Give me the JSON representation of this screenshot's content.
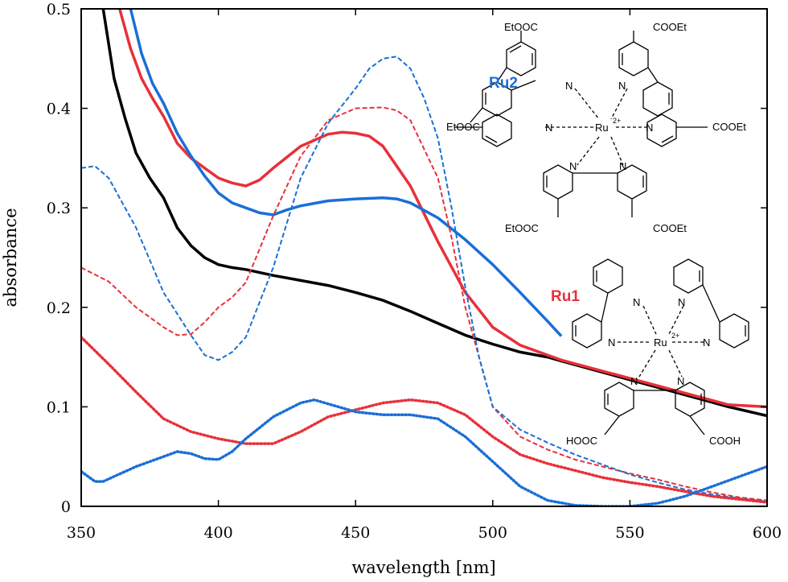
{
  "chart_data": {
    "type": "line",
    "xlabel": "wavelength [nm]",
    "ylabel": "absorbance",
    "xlim": [
      350,
      600
    ],
    "ylim": [
      0,
      0.5
    ],
    "xticks": [
      "350",
      "400",
      "450",
      "500",
      "550",
      "600"
    ],
    "yticks": [
      "0",
      "0.1",
      "0.2",
      "0.3",
      "0.4",
      "0.5"
    ],
    "grid": false,
    "series": [
      {
        "style": "solid",
        "color": "#000000",
        "x": [
          358,
          362,
          366,
          370,
          375,
          380,
          385,
          390,
          395,
          400,
          405,
          410,
          420,
          430,
          440,
          450,
          460,
          470,
          480,
          490,
          500,
          510,
          520,
          525,
          586,
          600
        ],
        "y": [
          0.5,
          0.43,
          0.39,
          0.355,
          0.33,
          0.31,
          0.28,
          0.262,
          0.25,
          0.243,
          0.24,
          0.238,
          0.232,
          0.227,
          0.222,
          0.215,
          0.207,
          0.196,
          0.184,
          0.172,
          0.163,
          0.155,
          0.15,
          0.146,
          0.1,
          0.091
        ]
      },
      {
        "style": "solid",
        "color": "#e8303a",
        "x": [
          364,
          368,
          372,
          376,
          380,
          385,
          390,
          395,
          400,
          405,
          410,
          415,
          420,
          430,
          440,
          445,
          450,
          455,
          460,
          470,
          480,
          490,
          500,
          510,
          520,
          525,
          586,
          600
        ],
        "y": [
          0.5,
          0.46,
          0.43,
          0.41,
          0.392,
          0.365,
          0.35,
          0.34,
          0.33,
          0.325,
          0.322,
          0.328,
          0.34,
          0.362,
          0.374,
          0.376,
          0.375,
          0.372,
          0.362,
          0.322,
          0.266,
          0.215,
          0.18,
          0.162,
          0.152,
          0.147,
          0.102,
          0.1
        ]
      },
      {
        "style": "solid",
        "color": "#1a6fd6",
        "x": [
          368,
          372,
          376,
          380,
          385,
          390,
          395,
          400,
          405,
          410,
          415,
          420,
          425,
          430,
          440,
          450,
          460,
          465,
          470,
          480,
          490,
          500,
          510,
          520,
          525
        ],
        "y": [
          0.5,
          0.455,
          0.425,
          0.405,
          0.375,
          0.352,
          0.332,
          0.315,
          0.305,
          0.3,
          0.295,
          0.293,
          0.298,
          0.302,
          0.307,
          0.309,
          0.31,
          0.309,
          0.305,
          0.29,
          0.268,
          0.243,
          0.215,
          0.186,
          0.171
        ]
      },
      {
        "style": "dashed",
        "color": "#e8303a",
        "x": [
          350,
          360,
          370,
          380,
          385,
          390,
          395,
          400,
          405,
          410,
          420,
          430,
          440,
          450,
          460,
          465,
          470,
          480,
          485,
          490,
          500,
          510,
          520,
          530,
          540,
          550,
          560,
          570,
          580,
          590,
          600
        ],
        "y": [
          0.24,
          0.226,
          0.2,
          0.18,
          0.172,
          0.173,
          0.185,
          0.2,
          0.21,
          0.225,
          0.292,
          0.352,
          0.388,
          0.4,
          0.401,
          0.398,
          0.388,
          0.33,
          0.27,
          0.2,
          0.1,
          0.07,
          0.057,
          0.047,
          0.04,
          0.033,
          0.027,
          0.02,
          0.014,
          0.009,
          0.006
        ]
      },
      {
        "style": "dashed",
        "color": "#1a6fd6",
        "x": [
          350,
          355,
          360,
          370,
          380,
          390,
          395,
          400,
          405,
          410,
          420,
          430,
          440,
          450,
          455,
          460,
          465,
          470,
          475,
          480,
          485,
          490,
          495,
          500,
          510,
          520,
          530,
          540,
          550,
          560,
          570,
          580,
          590,
          600
        ],
        "y": [
          0.34,
          0.342,
          0.33,
          0.28,
          0.215,
          0.172,
          0.152,
          0.147,
          0.155,
          0.17,
          0.24,
          0.33,
          0.385,
          0.42,
          0.44,
          0.45,
          0.452,
          0.44,
          0.41,
          0.37,
          0.3,
          0.22,
          0.15,
          0.1,
          0.077,
          0.064,
          0.052,
          0.042,
          0.032,
          0.024,
          0.017,
          0.012,
          0.008,
          0.005
        ]
      },
      {
        "style": "dotted",
        "color": "#e8303a",
        "x": [
          350,
          360,
          370,
          380,
          390,
          400,
          410,
          420,
          430,
          440,
          450,
          460,
          470,
          480,
          490,
          500,
          510,
          520,
          530,
          540,
          550,
          560,
          570,
          580,
          590,
          600
        ],
        "y": [
          0.17,
          0.143,
          0.115,
          0.088,
          0.075,
          0.068,
          0.063,
          0.063,
          0.075,
          0.09,
          0.097,
          0.104,
          0.107,
          0.104,
          0.092,
          0.07,
          0.052,
          0.043,
          0.036,
          0.029,
          0.024,
          0.02,
          0.015,
          0.01,
          0.007,
          0.004
        ]
      },
      {
        "style": "dotted",
        "color": "#1a6fd6",
        "x": [
          350,
          355,
          358,
          362,
          370,
          378,
          385,
          390,
          395,
          400,
          405,
          410,
          420,
          430,
          435,
          440,
          450,
          460,
          470,
          480,
          490,
          500,
          510,
          520,
          530,
          540,
          550,
          560,
          570,
          580,
          590,
          600
        ],
        "y": [
          0.035,
          0.025,
          0.025,
          0.03,
          0.04,
          0.048,
          0.055,
          0.053,
          0.048,
          0.047,
          0.055,
          0.068,
          0.09,
          0.104,
          0.107,
          0.103,
          0.095,
          0.092,
          0.092,
          0.088,
          0.07,
          0.045,
          0.02,
          0.006,
          0.001,
          0,
          0,
          0.003,
          0.01,
          0.02,
          0.03,
          0.04
        ]
      }
    ],
    "annotations": [
      {
        "text": "Ru2",
        "color": "#1a6fd6"
      },
      {
        "text": "Ru1",
        "color": "#e8303a"
      }
    ]
  },
  "structures": {
    "ru2": {
      "metal": "Ru",
      "charge": "2+",
      "nitrogen": "N",
      "substituents": [
        "EtOOC",
        "COOEt",
        "EtOOC",
        "COOEt",
        "EtOOC",
        "COOEt"
      ]
    },
    "ru1": {
      "metal": "Ru",
      "charge": "2+",
      "nitrogen": "N",
      "substituents": [
        "HOOC",
        "COOH"
      ]
    }
  }
}
